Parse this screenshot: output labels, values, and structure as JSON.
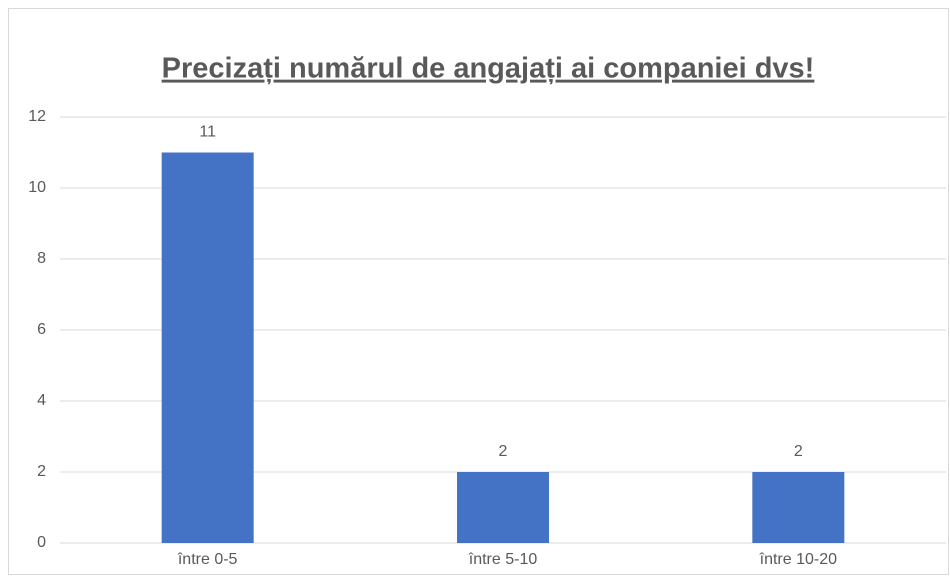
{
  "chart_data": {
    "type": "bar",
    "title": "Precizați numărul de angajați ai companiei dvs!",
    "categories": [
      "între 0-5",
      "între 5-10",
      "între 10-20"
    ],
    "values": [
      11,
      2,
      2
    ],
    "color": "#4472c4",
    "ylim": [
      0,
      12
    ],
    "yticks": [
      0,
      2,
      4,
      6,
      8,
      10,
      12
    ],
    "grid": true
  }
}
